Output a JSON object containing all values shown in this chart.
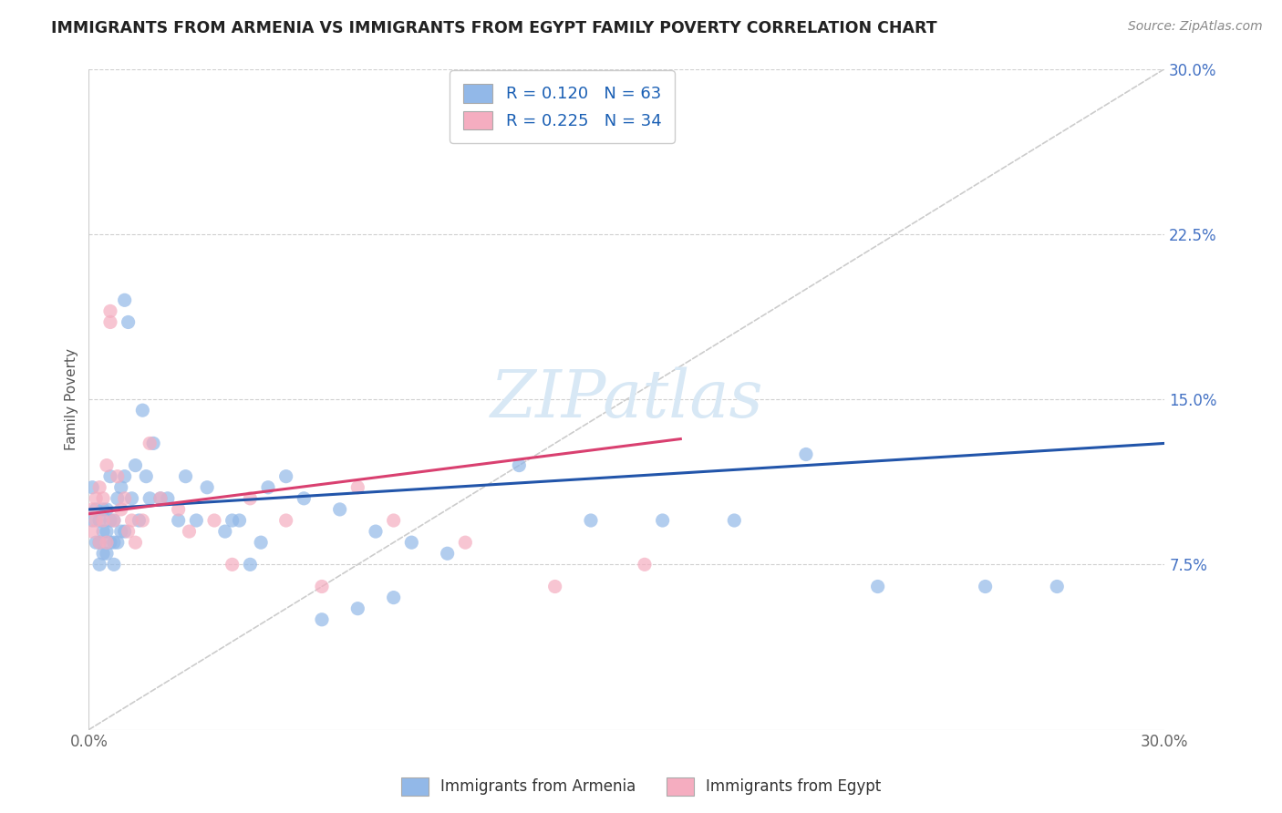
{
  "title": "IMMIGRANTS FROM ARMENIA VS IMMIGRANTS FROM EGYPT FAMILY POVERTY CORRELATION CHART",
  "source": "Source: ZipAtlas.com",
  "ylabel": "Family Poverty",
  "xlim": [
    0.0,
    0.3
  ],
  "ylim": [
    0.0,
    0.3
  ],
  "armenia_color": "#92b8e8",
  "egypt_color": "#f5adc0",
  "armenia_line_color": "#2255aa",
  "egypt_line_color": "#d94070",
  "diagonal_color": "#cccccc",
  "R_armenia": 0.12,
  "N_armenia": 63,
  "R_egypt": 0.225,
  "N_egypt": 34,
  "legend_label_armenia": "Immigrants from Armenia",
  "legend_label_egypt": "Immigrants from Egypt",
  "watermark": "ZIPatlas",
  "armenia_x": [
    0.001,
    0.001,
    0.002,
    0.002,
    0.003,
    0.003,
    0.003,
    0.004,
    0.004,
    0.004,
    0.005,
    0.005,
    0.005,
    0.006,
    0.006,
    0.006,
    0.007,
    0.007,
    0.007,
    0.008,
    0.008,
    0.009,
    0.009,
    0.01,
    0.01,
    0.01,
    0.011,
    0.012,
    0.013,
    0.014,
    0.015,
    0.016,
    0.017,
    0.018,
    0.02,
    0.022,
    0.025,
    0.027,
    0.03,
    0.033,
    0.038,
    0.042,
    0.05,
    0.055,
    0.06,
    0.07,
    0.08,
    0.09,
    0.1,
    0.12,
    0.14,
    0.16,
    0.18,
    0.2,
    0.22,
    0.25,
    0.27,
    0.04,
    0.045,
    0.048,
    0.065,
    0.075,
    0.085
  ],
  "armenia_y": [
    0.11,
    0.095,
    0.1,
    0.085,
    0.095,
    0.085,
    0.075,
    0.1,
    0.09,
    0.08,
    0.1,
    0.09,
    0.08,
    0.115,
    0.095,
    0.085,
    0.095,
    0.085,
    0.075,
    0.105,
    0.085,
    0.11,
    0.09,
    0.195,
    0.115,
    0.09,
    0.185,
    0.105,
    0.12,
    0.095,
    0.145,
    0.115,
    0.105,
    0.13,
    0.105,
    0.105,
    0.095,
    0.115,
    0.095,
    0.11,
    0.09,
    0.095,
    0.11,
    0.115,
    0.105,
    0.1,
    0.09,
    0.085,
    0.08,
    0.12,
    0.095,
    0.095,
    0.095,
    0.125,
    0.065,
    0.065,
    0.065,
    0.095,
    0.075,
    0.085,
    0.05,
    0.055,
    0.06
  ],
  "egypt_x": [
    0.001,
    0.001,
    0.002,
    0.002,
    0.003,
    0.003,
    0.004,
    0.004,
    0.005,
    0.005,
    0.006,
    0.006,
    0.007,
    0.008,
    0.009,
    0.01,
    0.011,
    0.012,
    0.013,
    0.015,
    0.017,
    0.02,
    0.025,
    0.028,
    0.035,
    0.04,
    0.045,
    0.055,
    0.065,
    0.075,
    0.085,
    0.105,
    0.13,
    0.155
  ],
  "egypt_y": [
    0.1,
    0.09,
    0.105,
    0.095,
    0.11,
    0.085,
    0.105,
    0.095,
    0.12,
    0.085,
    0.19,
    0.185,
    0.095,
    0.115,
    0.1,
    0.105,
    0.09,
    0.095,
    0.085,
    0.095,
    0.13,
    0.105,
    0.1,
    0.09,
    0.095,
    0.075,
    0.105,
    0.095,
    0.065,
    0.11,
    0.095,
    0.085,
    0.065,
    0.075
  ],
  "armenia_trend_x": [
    0.0,
    0.3
  ],
  "armenia_trend_y": [
    0.1,
    0.13
  ],
  "egypt_trend_x": [
    0.0,
    0.165
  ],
  "egypt_trend_y": [
    0.098,
    0.132
  ]
}
